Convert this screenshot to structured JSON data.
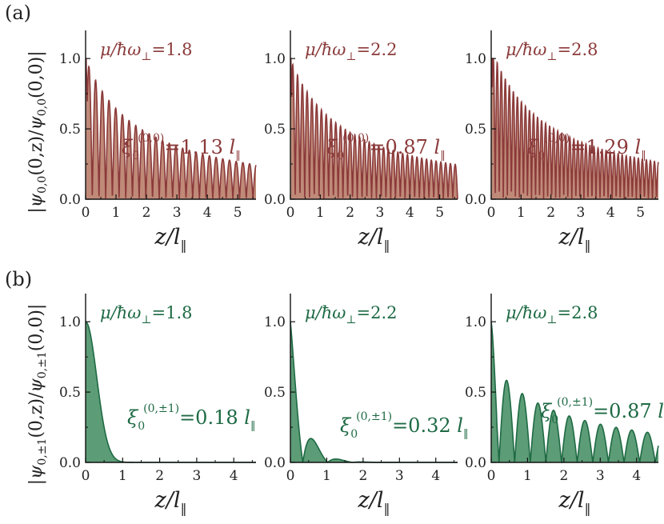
{
  "colors": {
    "red_line": "#8B3A3A",
    "red_fill": "#C08A78",
    "green_line": "#1E6A44",
    "green_fill": "#5C9C76",
    "axis": "#111111"
  },
  "row_a": {
    "label": "(a)",
    "ylabel": "|ψ0,0(0,z)/ψ0,0(0,0)|",
    "ylabel_parts": {
      "psi": "ψ",
      "sub": "0,0",
      "mid": "(0,z)/",
      "psi2": "ψ",
      "sub2": "0,0",
      "end": "(0,0)|"
    }
  },
  "row_b": {
    "label": "(b)",
    "ylabel": "|ψ0,±1(0,z)/ψ0,±1(0,0)|",
    "ylabel_parts": {
      "psi": "ψ",
      "sub": "0,±1",
      "mid": "(0,z)/",
      "psi2": "ψ",
      "sub2": "0,±1",
      "end": "(0,0)|"
    }
  },
  "chart_data": [
    {
      "id": "a1",
      "type": "area",
      "row": "a",
      "xlabel": "z/l‖",
      "xlim": [
        0,
        5.6
      ],
      "ylim": [
        0,
        1.2
      ],
      "xticks": [
        "0",
        "1",
        "2",
        "3",
        "4",
        "5"
      ],
      "yticks": [
        "0.0",
        "0.5",
        "1.0"
      ],
      "mu_label": "μ/ħω⊥=1.8",
      "mu_value": "1.8",
      "xi_sup": "(0,0)",
      "xi_value": "=1.13 l‖",
      "xi_num": "1.13",
      "curve": {
        "kind": "oscillating",
        "period": 0.44,
        "phase": 1.5708,
        "decay_length": 1.13,
        "peak_start": 1.0
      }
    },
    {
      "id": "a2",
      "type": "area",
      "row": "a",
      "xlabel": "z/l‖",
      "xlim": [
        0,
        5.6
      ],
      "ylim": [
        0,
        1.2
      ],
      "xticks": [
        "0",
        "1",
        "2",
        "3",
        "4",
        "5"
      ],
      "yticks": [
        "0.0",
        "0.5",
        "1.0"
      ],
      "mu_label": "μ/ħω⊥=2.2",
      "mu_value": "2.2",
      "xi_sup": "(0,0)",
      "xi_value": "=0.87 l‖",
      "xi_num": "0.87",
      "curve": {
        "kind": "oscillating",
        "period": 0.32,
        "phase": 1.5708,
        "decay_length": 0.87,
        "peak_start": 1.0
      }
    },
    {
      "id": "a3",
      "type": "area",
      "row": "a",
      "xlabel": "z/l‖",
      "xlim": [
        0,
        5.6
      ],
      "ylim": [
        0,
        1.2
      ],
      "xticks": [
        "0",
        "1",
        "2",
        "3",
        "4",
        "5"
      ],
      "yticks": [
        "0.0",
        "0.5",
        "1.0"
      ],
      "mu_label": "μ/ħω⊥=2.8",
      "mu_value": "2.8",
      "xi_sup": "(0,0)",
      "xi_value": "=1.29 l‖",
      "xi_num": "1.29",
      "curve": {
        "kind": "oscillating",
        "period": 0.27,
        "phase": 1.5708,
        "decay_length": 1.29,
        "peak_start": 1.25
      }
    },
    {
      "id": "b1",
      "type": "area",
      "row": "b",
      "xlabel": "z/l‖",
      "xlim": [
        0,
        4.6
      ],
      "ylim": [
        0,
        1.2
      ],
      "xticks": [
        "0",
        "1",
        "2",
        "3",
        "4"
      ],
      "yticks": [
        "0.0",
        "0.5",
        "1.0"
      ],
      "mu_label": "μ/ħω⊥=1.8",
      "mu_value": "1.8",
      "xi_sup": "(0,±1)",
      "xi_value": "=0.18 l‖",
      "xi_num": "0.18",
      "curve": {
        "kind": "gaussian",
        "sigma": 0.3
      }
    },
    {
      "id": "b2",
      "type": "area",
      "row": "b",
      "xlabel": "z/l‖",
      "xlim": [
        0,
        4.6
      ],
      "ylim": [
        0,
        1.2
      ],
      "xticks": [
        "0",
        "1",
        "2",
        "3",
        "4"
      ],
      "yticks": [
        "0.0",
        "0.5",
        "1.0"
      ],
      "mu_label": "μ/ħω⊥=2.2",
      "mu_value": "2.2",
      "xi_sup": "(0,±1)",
      "xi_value": "=0.32 l‖",
      "xi_num": "0.32",
      "curve": {
        "kind": "oscillating",
        "period": 1.37,
        "phase": 1.5708,
        "decay_length": 0.32,
        "peak_start": 1.0
      }
    },
    {
      "id": "b3",
      "type": "area",
      "row": "b",
      "xlabel": "z/l‖",
      "xlim": [
        0,
        4.6
      ],
      "ylim": [
        0,
        1.2
      ],
      "xticks": [
        "0",
        "1",
        "2",
        "3",
        "4"
      ],
      "yticks": [
        "0.0",
        "0.5",
        "1.0"
      ],
      "mu_label": "μ/ħω⊥=2.8",
      "mu_value": "2.8",
      "xi_sup": "(0,±1)",
      "xi_value": "=0.87 l‖",
      "xi_num": "0.87",
      "curve": {
        "kind": "oscillating",
        "period": 0.86,
        "phase": 1.5708,
        "decay_length": 0.87,
        "peak_start": 1.0
      }
    }
  ]
}
